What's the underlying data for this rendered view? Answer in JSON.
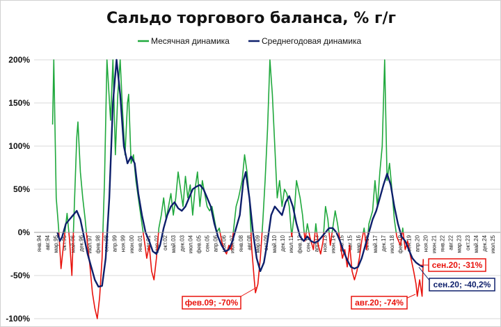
{
  "chart_data": {
    "type": "line",
    "title": "Сальдо торгового баланса, % г/г",
    "ylim": [
      -100,
      200
    ],
    "yticks": [
      "-100%",
      "-50%",
      "0%",
      "50%",
      "100%",
      "150%",
      "200%"
    ],
    "ytick_values": [
      -100,
      -50,
      0,
      50,
      100,
      150,
      200
    ],
    "x_tick_labels": [
      "янв.94",
      "авг.94",
      "мар.95",
      "окт.95",
      "май.96",
      "дек.96",
      "июл.97",
      "фев.98",
      "сен.98",
      "апр.99",
      "ноя.99",
      "июн.00",
      "янв.01",
      "авг.01",
      "мар.02",
      "окт.02",
      "май.03",
      "дек.03",
      "июл.04",
      "фев.05",
      "сен.05",
      "апр.06",
      "ноя.06",
      "июн.07",
      "янв.08",
      "авг.08",
      "мар.09",
      "окт.09",
      "май.10",
      "дек.10",
      "июл.11",
      "фев.12",
      "сен.12",
      "апр.13",
      "ноя.13",
      "июн.14",
      "янв.15",
      "авг.15",
      "мар.16",
      "окт.16",
      "май.17",
      "дек.17",
      "июл.18",
      "фев.19",
      "сен.19",
      "апр.20",
      "ноя.20",
      "июн.21",
      "янв.22",
      "авг.22",
      "мар.23",
      "окт.23",
      "май.24",
      "дек.24",
      "июл.25"
    ],
    "x_start": "1994-01",
    "x_end": "2025-07",
    "series": [
      {
        "name": "Месячная динамика",
        "color": "#1fa83c",
        "negative_color": "#e8120c",
        "values": [
          [
            "1995-02",
            125
          ],
          [
            "1995-03",
            210
          ],
          [
            "1995-05",
            40
          ],
          [
            "1995-07",
            5
          ],
          [
            "1995-09",
            -42
          ],
          [
            "1995-11",
            -15
          ],
          [
            "1996-02",
            22
          ],
          [
            "1996-04",
            -8
          ],
          [
            "1996-06",
            -50
          ],
          [
            "1996-08",
            30
          ],
          [
            "1996-10",
            110
          ],
          [
            "1996-11",
            128
          ],
          [
            "1997-01",
            70
          ],
          [
            "1997-03",
            40
          ],
          [
            "1997-05",
            15
          ],
          [
            "1997-07",
            -15
          ],
          [
            "1997-09",
            -40
          ],
          [
            "1997-11",
            -70
          ],
          [
            "1998-01",
            -88
          ],
          [
            "1998-03",
            -102
          ],
          [
            "1998-05",
            -75
          ],
          [
            "1998-07",
            -30
          ],
          [
            "1998-09",
            60
          ],
          [
            "1998-11",
            210
          ],
          [
            "1999-02",
            130
          ],
          [
            "1999-04",
            210
          ],
          [
            "1999-06",
            90
          ],
          [
            "1999-08",
            160
          ],
          [
            "1999-10",
            205
          ],
          [
            "1999-12",
            140
          ],
          [
            "2000-02",
            90
          ],
          [
            "2000-04",
            150
          ],
          [
            "2000-05",
            160
          ],
          [
            "2000-07",
            80
          ],
          [
            "2000-09",
            90
          ],
          [
            "2000-11",
            60
          ],
          [
            "2001-02",
            30
          ],
          [
            "2001-04",
            10
          ],
          [
            "2001-06",
            -10
          ],
          [
            "2001-08",
            -30
          ],
          [
            "2001-10",
            -15
          ],
          [
            "2001-12",
            -45
          ],
          [
            "2002-02",
            -55
          ],
          [
            "2002-04",
            -30
          ],
          [
            "2002-06",
            5
          ],
          [
            "2002-08",
            20
          ],
          [
            "2002-10",
            40
          ],
          [
            "2002-12",
            15
          ],
          [
            "2003-02",
            30
          ],
          [
            "2003-04",
            45
          ],
          [
            "2003-06",
            20
          ],
          [
            "2003-08",
            40
          ],
          [
            "2003-10",
            70
          ],
          [
            "2003-12",
            50
          ],
          [
            "2004-02",
            30
          ],
          [
            "2004-04",
            65
          ],
          [
            "2004-06",
            40
          ],
          [
            "2004-08",
            55
          ],
          [
            "2004-10",
            20
          ],
          [
            "2004-12",
            50
          ],
          [
            "2005-02",
            70
          ],
          [
            "2005-04",
            30
          ],
          [
            "2005-06",
            60
          ],
          [
            "2005-08",
            45
          ],
          [
            "2005-10",
            30
          ],
          [
            "2005-12",
            25
          ],
          [
            "2006-02",
            30
          ],
          [
            "2006-04",
            15
          ],
          [
            "2006-06",
            0
          ],
          [
            "2006-08",
            5
          ],
          [
            "2006-10",
            -10
          ],
          [
            "2006-12",
            -20
          ],
          [
            "2007-02",
            -25
          ],
          [
            "2007-04",
            -15
          ],
          [
            "2007-06",
            -20
          ],
          [
            "2007-08",
            5
          ],
          [
            "2007-10",
            30
          ],
          [
            "2007-12",
            40
          ],
          [
            "2008-03",
            60
          ],
          [
            "2008-05",
            90
          ],
          [
            "2008-07",
            70
          ],
          [
            "2008-09",
            40
          ],
          [
            "2008-11",
            -20
          ],
          [
            "2009-01",
            -55
          ],
          [
            "2009-02",
            -70
          ],
          [
            "2009-04",
            -60
          ],
          [
            "2009-06",
            -30
          ],
          [
            "2009-08",
            10
          ],
          [
            "2009-10",
            60
          ],
          [
            "2009-12",
            120
          ],
          [
            "2010-02",
            210
          ],
          [
            "2010-04",
            160
          ],
          [
            "2010-06",
            100
          ],
          [
            "2010-08",
            40
          ],
          [
            "2010-10",
            60
          ],
          [
            "2010-12",
            30
          ],
          [
            "2011-02",
            50
          ],
          [
            "2011-04",
            45
          ],
          [
            "2011-06",
            30
          ],
          [
            "2011-08",
            -5
          ],
          [
            "2011-10",
            20
          ],
          [
            "2011-12",
            60
          ],
          [
            "2012-03",
            40
          ],
          [
            "2012-05",
            20
          ],
          [
            "2012-07",
            -10
          ],
          [
            "2012-09",
            10
          ],
          [
            "2012-11",
            -5
          ],
          [
            "2013-02",
            -20
          ],
          [
            "2013-04",
            10
          ],
          [
            "2013-06",
            -15
          ],
          [
            "2013-08",
            -25
          ],
          [
            "2013-10",
            -10
          ],
          [
            "2013-12",
            30
          ],
          [
            "2014-02",
            15
          ],
          [
            "2014-04",
            -15
          ],
          [
            "2014-06",
            5
          ],
          [
            "2014-08",
            25
          ],
          [
            "2014-10",
            10
          ],
          [
            "2014-12",
            -10
          ],
          [
            "2015-02",
            -30
          ],
          [
            "2015-04",
            -20
          ],
          [
            "2015-06",
            -40
          ],
          [
            "2015-08",
            -15
          ],
          [
            "2015-10",
            -45
          ],
          [
            "2015-12",
            -55
          ],
          [
            "2016-02",
            -45
          ],
          [
            "2016-04",
            -30
          ],
          [
            "2016-06",
            -10
          ],
          [
            "2016-08",
            5
          ],
          [
            "2016-10",
            -20
          ],
          [
            "2016-12",
            10
          ],
          [
            "2017-03",
            25
          ],
          [
            "2017-05",
            60
          ],
          [
            "2017-07",
            30
          ],
          [
            "2017-09",
            70
          ],
          [
            "2017-11",
            100
          ],
          [
            "2018-01",
            200
          ],
          [
            "2018-03",
            60
          ],
          [
            "2018-05",
            80
          ],
          [
            "2018-07",
            50
          ],
          [
            "2018-09",
            15
          ],
          [
            "2018-11",
            -5
          ],
          [
            "2019-02",
            -15
          ],
          [
            "2019-04",
            5
          ],
          [
            "2019-06",
            -20
          ],
          [
            "2019-08",
            -10
          ],
          [
            "2019-10",
            -25
          ],
          [
            "2020-01",
            -45
          ],
          [
            "2020-03",
            -60
          ],
          [
            "2020-04",
            -74
          ],
          [
            "2020-06",
            -55
          ],
          [
            "2020-08",
            -74
          ],
          [
            "2020-09",
            -31
          ]
        ]
      },
      {
        "name": "Среднегодовая динамика",
        "color": "#0d1f6b",
        "values": [
          [
            "1995-06",
            0
          ],
          [
            "1995-08",
            -10
          ],
          [
            "1995-10",
            -5
          ],
          [
            "1996-01",
            10
          ],
          [
            "1996-04",
            15
          ],
          [
            "1996-07",
            20
          ],
          [
            "1996-10",
            25
          ],
          [
            "1997-01",
            15
          ],
          [
            "1997-04",
            -5
          ],
          [
            "1997-07",
            -25
          ],
          [
            "1997-10",
            -40
          ],
          [
            "1998-01",
            -55
          ],
          [
            "1998-04",
            -63
          ],
          [
            "1998-07",
            -62
          ],
          [
            "1998-10",
            -30
          ],
          [
            "1999-01",
            40
          ],
          [
            "1999-04",
            150
          ],
          [
            "1999-07",
            200
          ],
          [
            "1999-10",
            160
          ],
          [
            "2000-01",
            100
          ],
          [
            "2000-04",
            80
          ],
          [
            "2000-07",
            88
          ],
          [
            "2000-10",
            80
          ],
          [
            "2001-01",
            45
          ],
          [
            "2001-04",
            20
          ],
          [
            "2001-07",
            0
          ],
          [
            "2001-10",
            -10
          ],
          [
            "2002-01",
            -22
          ],
          [
            "2002-04",
            -25
          ],
          [
            "2002-07",
            -15
          ],
          [
            "2002-10",
            5
          ],
          [
            "2003-01",
            20
          ],
          [
            "2003-04",
            30
          ],
          [
            "2003-07",
            35
          ],
          [
            "2003-10",
            28
          ],
          [
            "2004-01",
            25
          ],
          [
            "2004-04",
            30
          ],
          [
            "2004-07",
            40
          ],
          [
            "2004-10",
            50
          ],
          [
            "2005-01",
            53
          ],
          [
            "2005-04",
            55
          ],
          [
            "2005-07",
            50
          ],
          [
            "2005-10",
            40
          ],
          [
            "2006-01",
            30
          ],
          [
            "2006-04",
            10
          ],
          [
            "2006-07",
            -5
          ],
          [
            "2006-10",
            -15
          ],
          [
            "2007-01",
            -22
          ],
          [
            "2007-04",
            -20
          ],
          [
            "2007-07",
            -10
          ],
          [
            "2007-10",
            5
          ],
          [
            "2008-01",
            20
          ],
          [
            "2008-04",
            60
          ],
          [
            "2008-06",
            70
          ],
          [
            "2008-09",
            40
          ],
          [
            "2008-12",
            0
          ],
          [
            "2009-03",
            -30
          ],
          [
            "2009-06",
            -45
          ],
          [
            "2009-09",
            -35
          ],
          [
            "2009-12",
            -10
          ],
          [
            "2010-03",
            20
          ],
          [
            "2010-06",
            30
          ],
          [
            "2010-09",
            25
          ],
          [
            "2010-12",
            20
          ],
          [
            "2011-03",
            35
          ],
          [
            "2011-06",
            42
          ],
          [
            "2011-09",
            30
          ],
          [
            "2011-12",
            10
          ],
          [
            "2012-03",
            -5
          ],
          [
            "2012-06",
            -10
          ],
          [
            "2012-09",
            -5
          ],
          [
            "2012-12",
            -10
          ],
          [
            "2013-03",
            -12
          ],
          [
            "2013-06",
            -10
          ],
          [
            "2013-09",
            -5
          ],
          [
            "2013-12",
            0
          ],
          [
            "2014-03",
            5
          ],
          [
            "2014-06",
            5
          ],
          [
            "2014-09",
            0
          ],
          [
            "2014-12",
            -10
          ],
          [
            "2015-03",
            -22
          ],
          [
            "2015-06",
            -32
          ],
          [
            "2015-09",
            -40
          ],
          [
            "2015-12",
            -42
          ],
          [
            "2016-03",
            -40
          ],
          [
            "2016-06",
            -30
          ],
          [
            "2016-09",
            -15
          ],
          [
            "2016-12",
            0
          ],
          [
            "2017-03",
            15
          ],
          [
            "2017-06",
            25
          ],
          [
            "2017-09",
            40
          ],
          [
            "2017-12",
            55
          ],
          [
            "2018-03",
            68
          ],
          [
            "2018-06",
            55
          ],
          [
            "2018-09",
            30
          ],
          [
            "2018-12",
            10
          ],
          [
            "2019-03",
            -5
          ],
          [
            "2019-06",
            -10
          ],
          [
            "2019-09",
            -20
          ],
          [
            "2019-12",
            -30
          ],
          [
            "2020-03",
            -35
          ],
          [
            "2020-06",
            -38
          ],
          [
            "2020-09",
            -40.2
          ]
        ]
      }
    ],
    "annotations": [
      {
        "text": "фев.09; -70%",
        "color": "#e8120c"
      },
      {
        "text": "авг.20; -74%",
        "color": "#e8120c"
      },
      {
        "text": "сен.20; -31%",
        "color": "#e8120c"
      },
      {
        "text": "сен.20; -40,2%",
        "color": "#0d1f6b"
      }
    ],
    "legend_position": "top"
  }
}
